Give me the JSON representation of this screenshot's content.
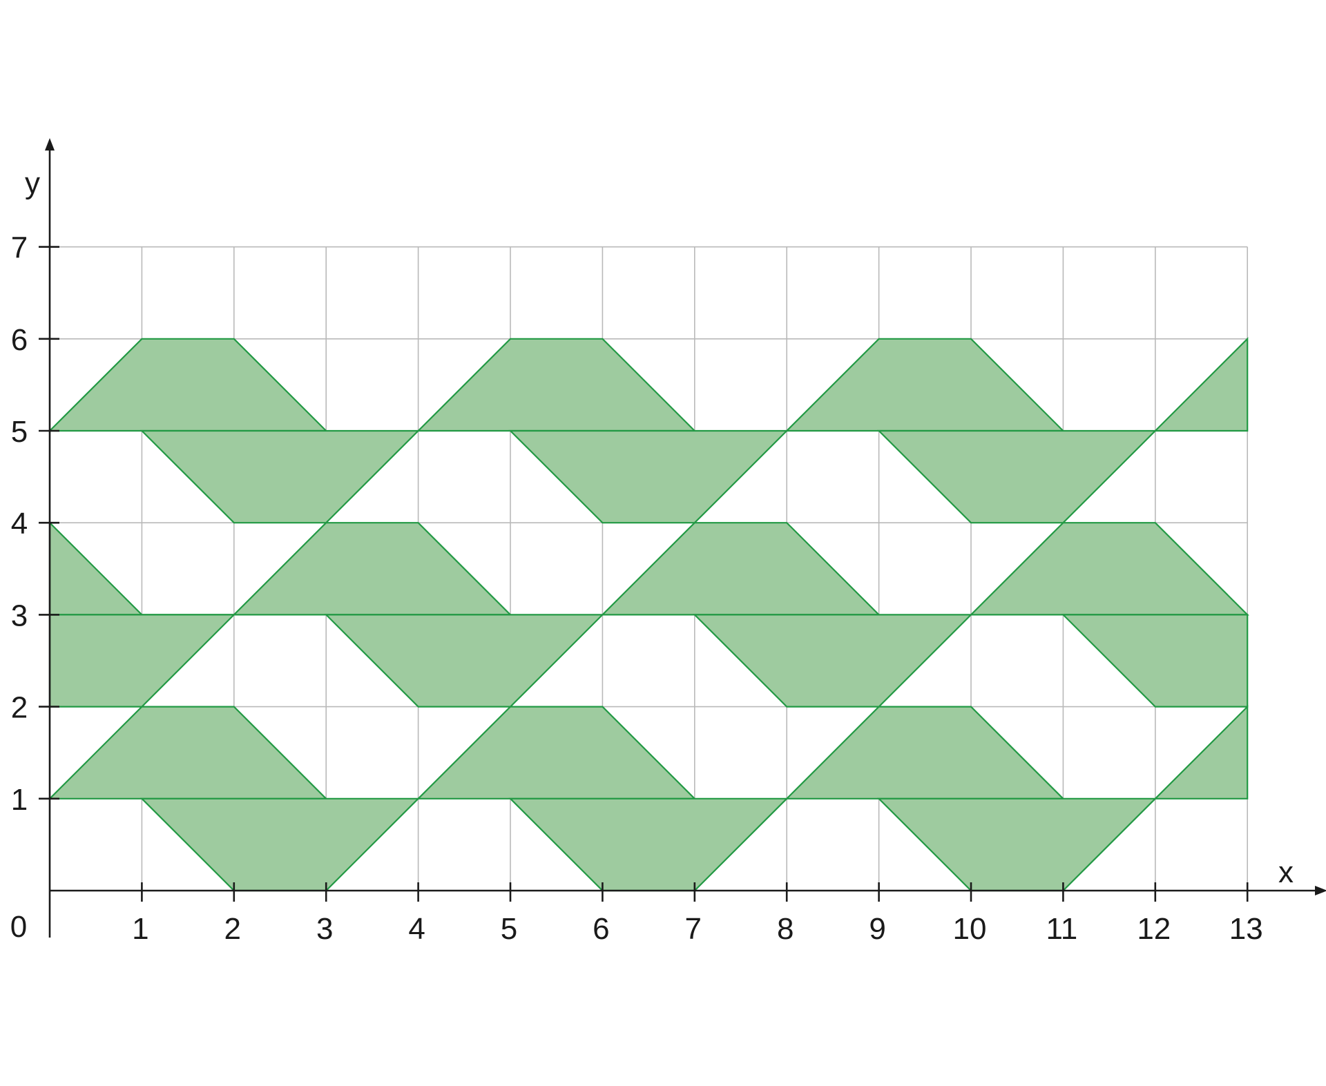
{
  "chart_data": {
    "type": "diagram",
    "xlabel": "x",
    "ylabel": "y",
    "origin_label": "0",
    "xlim": [
      0,
      13
    ],
    "ylim": [
      0,
      7
    ],
    "grid": true,
    "x_ticks": [
      1,
      2,
      3,
      4,
      5,
      6,
      7,
      8,
      9,
      10,
      11,
      12,
      13
    ],
    "y_ticks": [
      1,
      2,
      3,
      4,
      5,
      6,
      7
    ],
    "x_tick_labels": [
      "1",
      "2",
      "3",
      "4",
      "5",
      "6",
      "7",
      "8",
      "9",
      "10",
      "11",
      "12",
      "13"
    ],
    "y_tick_labels": [
      "1",
      "2",
      "3",
      "4",
      "5",
      "6",
      "7"
    ],
    "fill_color": "#9ecb9f",
    "stroke_color": "#229944",
    "shapes": [
      [
        [
          0,
          1
        ],
        [
          1,
          2
        ],
        [
          2,
          2
        ],
        [
          3,
          1
        ],
        [
          1,
          1
        ]
      ],
      [
        [
          1,
          1
        ],
        [
          2,
          0
        ],
        [
          3,
          0
        ],
        [
          4,
          1
        ],
        [
          3,
          1
        ]
      ],
      [
        [
          4,
          1
        ],
        [
          5,
          2
        ],
        [
          6,
          2
        ],
        [
          7,
          1
        ],
        [
          5,
          1
        ]
      ],
      [
        [
          5,
          1
        ],
        [
          6,
          0
        ],
        [
          7,
          0
        ],
        [
          8,
          1
        ],
        [
          7,
          1
        ]
      ],
      [
        [
          8,
          1
        ],
        [
          9,
          2
        ],
        [
          10,
          2
        ],
        [
          11,
          1
        ],
        [
          9,
          1
        ]
      ],
      [
        [
          9,
          1
        ],
        [
          10,
          0
        ],
        [
          11,
          0
        ],
        [
          12,
          1
        ],
        [
          11,
          1
        ]
      ],
      [
        [
          12,
          1
        ],
        [
          13,
          2
        ],
        [
          13,
          1
        ]
      ],
      [
        [
          0,
          4
        ],
        [
          1,
          3
        ],
        [
          2,
          3
        ],
        [
          0,
          3
        ]
      ],
      [
        [
          0,
          3
        ],
        [
          2,
          3
        ],
        [
          1,
          2
        ],
        [
          0,
          2
        ]
      ],
      [
        [
          2,
          3
        ],
        [
          3,
          4
        ],
        [
          4,
          4
        ],
        [
          5,
          3
        ],
        [
          3,
          3
        ]
      ],
      [
        [
          3,
          3
        ],
        [
          4,
          2
        ],
        [
          5,
          2
        ],
        [
          6,
          3
        ],
        [
          5,
          3
        ]
      ],
      [
        [
          6,
          3
        ],
        [
          7,
          4
        ],
        [
          8,
          4
        ],
        [
          9,
          3
        ],
        [
          7,
          3
        ]
      ],
      [
        [
          7,
          3
        ],
        [
          8,
          2
        ],
        [
          9,
          2
        ],
        [
          10,
          3
        ],
        [
          9,
          3
        ]
      ],
      [
        [
          10,
          3
        ],
        [
          11,
          4
        ],
        [
          12,
          4
        ],
        [
          13,
          3
        ],
        [
          11,
          3
        ]
      ],
      [
        [
          11,
          3
        ],
        [
          12,
          2
        ],
        [
          13,
          2
        ],
        [
          13,
          3
        ]
      ],
      [
        [
          0,
          5
        ],
        [
          1,
          6
        ],
        [
          2,
          6
        ],
        [
          3,
          5
        ],
        [
          1,
          5
        ]
      ],
      [
        [
          1,
          5
        ],
        [
          2,
          4
        ],
        [
          3,
          4
        ],
        [
          4,
          5
        ],
        [
          3,
          5
        ]
      ],
      [
        [
          4,
          5
        ],
        [
          5,
          6
        ],
        [
          6,
          6
        ],
        [
          7,
          5
        ],
        [
          5,
          5
        ]
      ],
      [
        [
          5,
          5
        ],
        [
          6,
          4
        ],
        [
          7,
          4
        ],
        [
          8,
          5
        ],
        [
          7,
          5
        ]
      ],
      [
        [
          8,
          5
        ],
        [
          9,
          6
        ],
        [
          10,
          6
        ],
        [
          11,
          5
        ],
        [
          9,
          5
        ]
      ],
      [
        [
          9,
          5
        ],
        [
          10,
          4
        ],
        [
          11,
          4
        ],
        [
          12,
          5
        ],
        [
          11,
          5
        ]
      ],
      [
        [
          12,
          5
        ],
        [
          13,
          6
        ],
        [
          13,
          5
        ]
      ]
    ]
  }
}
